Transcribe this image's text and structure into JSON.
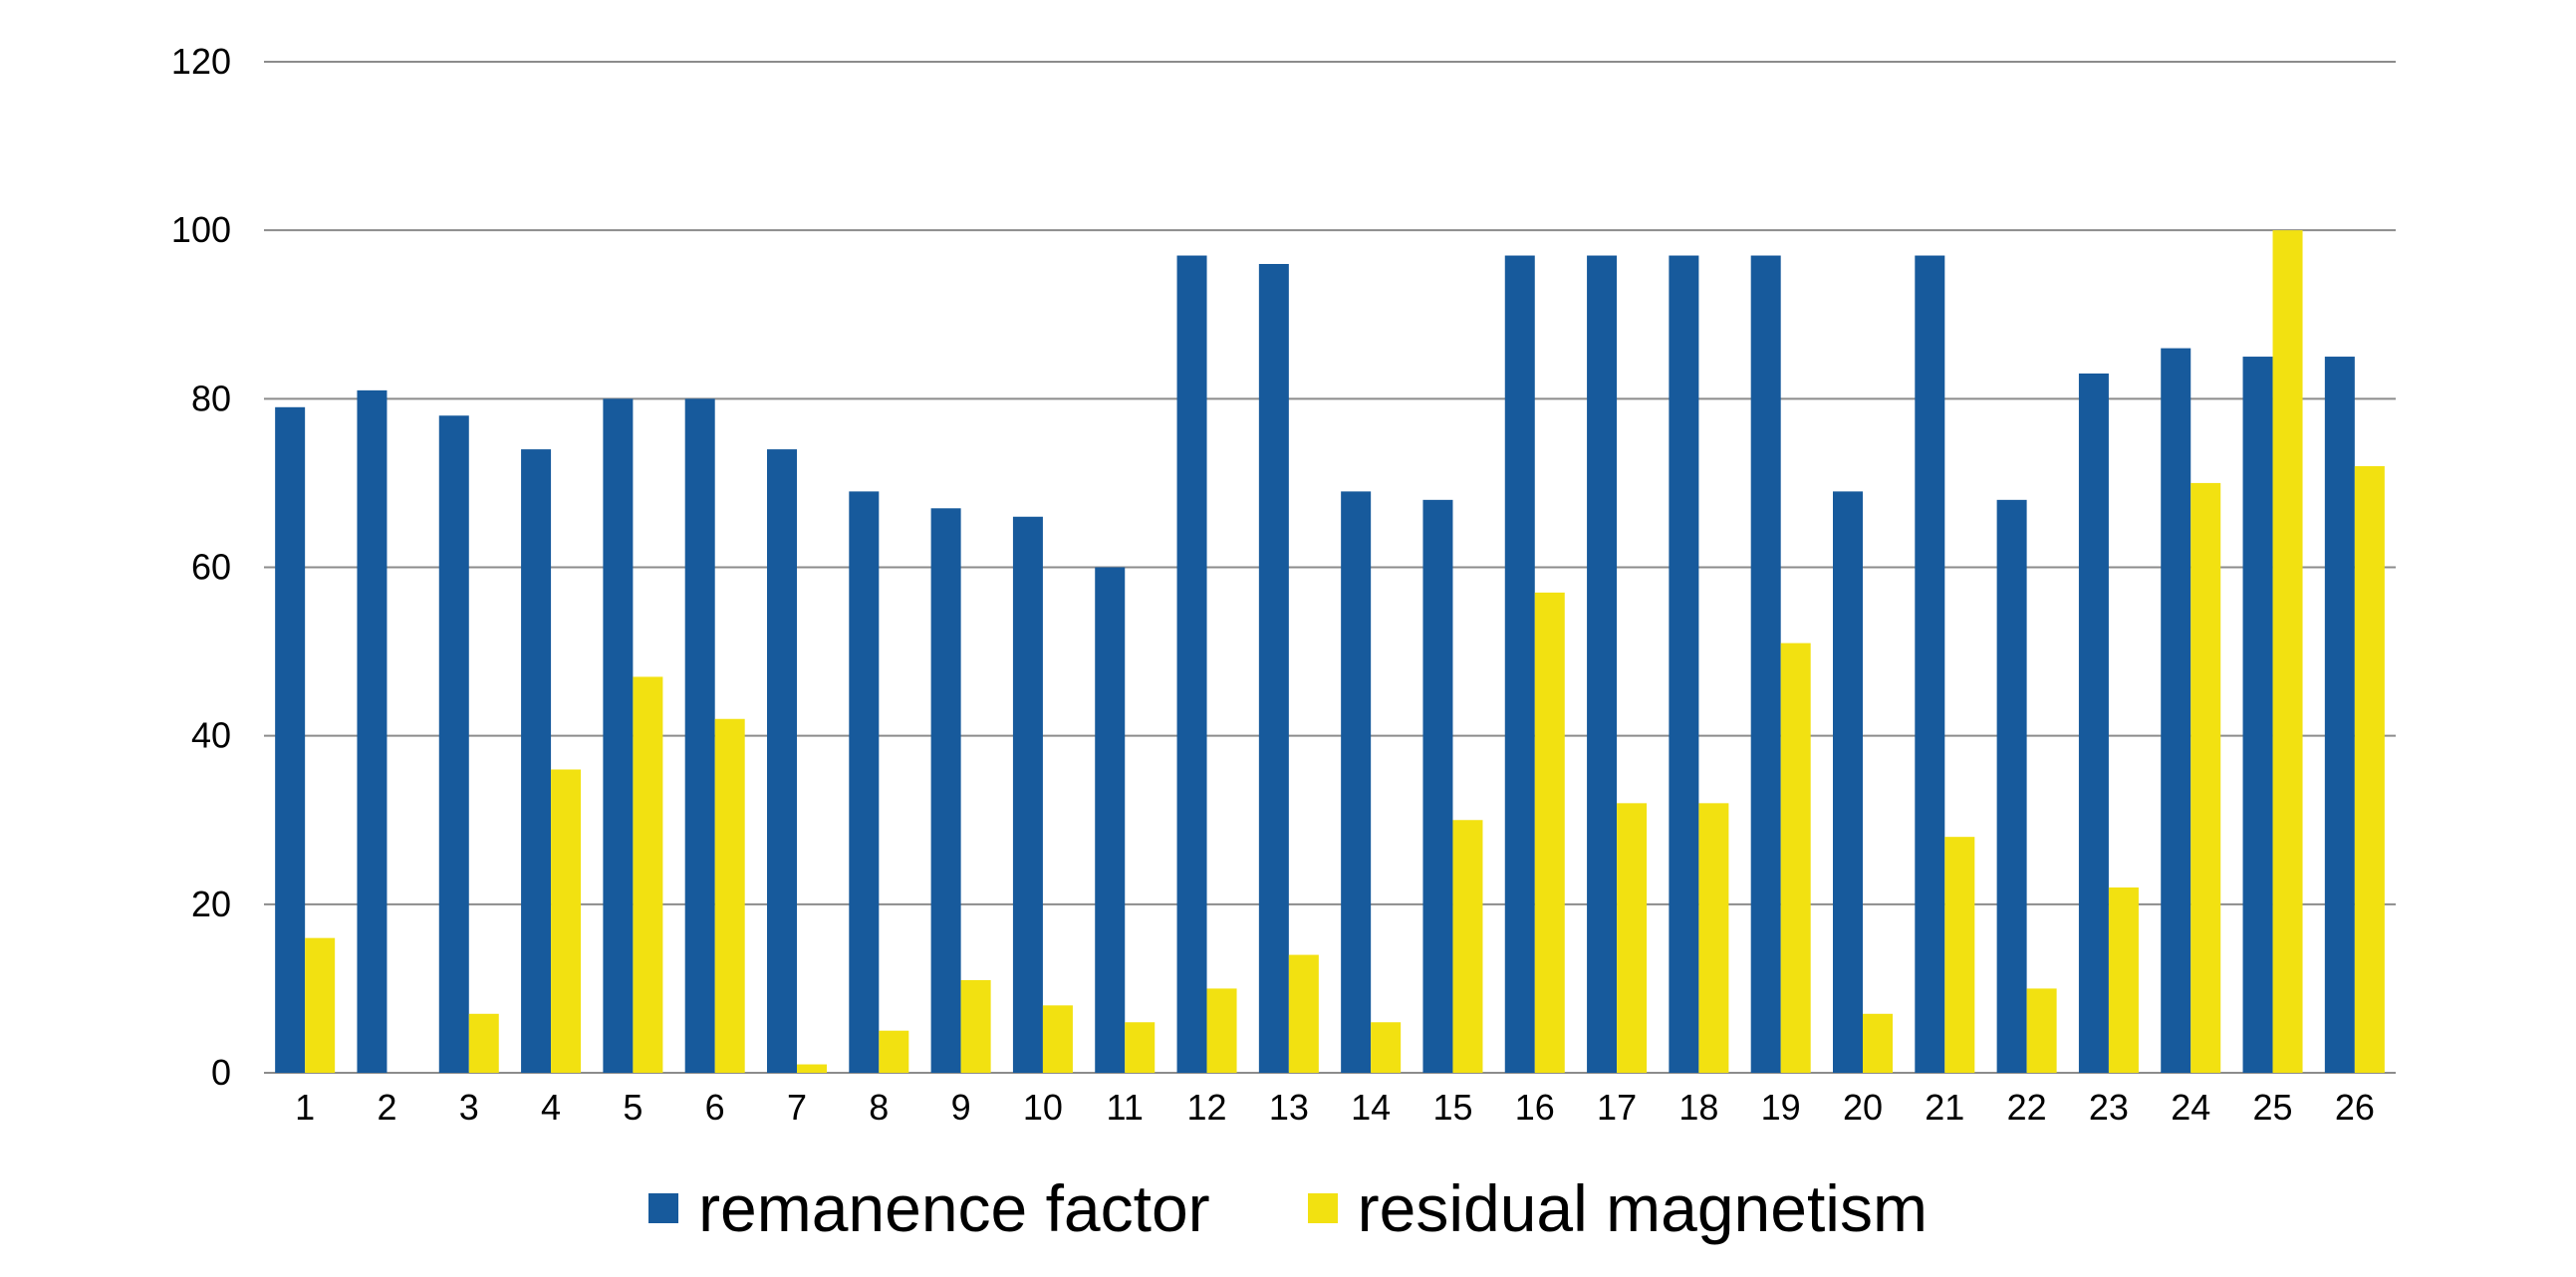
{
  "chart_data": {
    "type": "bar",
    "categories": [
      "1",
      "2",
      "3",
      "4",
      "5",
      "6",
      "7",
      "8",
      "9",
      "10",
      "11",
      "12",
      "13",
      "14",
      "15",
      "16",
      "17",
      "18",
      "19",
      "20",
      "21",
      "22",
      "23",
      "24",
      "25",
      "26"
    ],
    "series": [
      {
        "name": "remanence factor",
        "color": "#175a9c",
        "values": [
          79,
          81,
          78,
          74,
          80,
          80,
          74,
          69,
          67,
          66,
          60,
          97,
          96,
          69,
          68,
          97,
          97,
          97,
          97,
          69,
          97,
          68,
          83,
          86,
          85,
          85
        ]
      },
      {
        "name": "residual magnetism",
        "color": "#f2e111",
        "values": [
          16,
          0,
          7,
          36,
          47,
          42,
          1,
          5,
          11,
          8,
          6,
          10,
          14,
          6,
          30,
          57,
          32,
          32,
          51,
          7,
          28,
          10,
          22,
          70,
          100,
          72
        ]
      }
    ],
    "yticks": [
      "0",
      "20",
      "40",
      "60",
      "80",
      "100",
      "120"
    ],
    "ylim": [
      0,
      120
    ],
    "grid": true,
    "legend_position": "bottom",
    "gridline_color": "#8c8c8c"
  },
  "legend": {
    "items": [
      {
        "label": "remanence factor",
        "color": "#175a9c"
      },
      {
        "label": "residual magnetism",
        "color": "#f2e111"
      }
    ]
  }
}
